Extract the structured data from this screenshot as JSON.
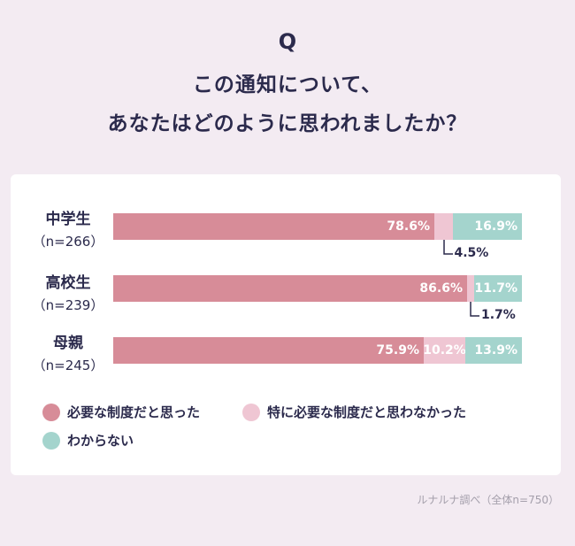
{
  "question_mark": "Q",
  "title_line1": "この通知について、",
  "title_line2": "あなたはどのように思われましたか？",
  "source": "ルナルナ調べ（全体n=750）",
  "colors": {
    "necessary": "#d78c98",
    "partly": "#efc6d3",
    "unknown": "#a4d4cd"
  },
  "chart_data": {
    "type": "bar",
    "orientation": "horizontal",
    "stacked": true,
    "title": "この通知について、あなたはどのように思われましたか？",
    "categories": [
      {
        "name": "中学生",
        "n": "（n=266）"
      },
      {
        "name": "高校生",
        "n": "（n=239）"
      },
      {
        "name": "母親",
        "n": "（n=245）"
      }
    ],
    "series": [
      {
        "name": "必要な制度だと思った",
        "values": [
          78.6,
          86.6,
          75.9
        ],
        "labels": [
          "78.6%",
          "86.6%",
          "75.9%"
        ]
      },
      {
        "name": "特に必要な制度だと思わなかった",
        "values": [
          4.5,
          1.7,
          10.2
        ],
        "labels": [
          "4.5%",
          "1.7%",
          "10.2%"
        ]
      },
      {
        "name": "わからない",
        "values": [
          16.9,
          11.7,
          13.9
        ],
        "labels": [
          "16.9%",
          "11.7%",
          "13.9%"
        ]
      }
    ],
    "legend_position": "bottom",
    "xlim": [
      0,
      100
    ]
  }
}
